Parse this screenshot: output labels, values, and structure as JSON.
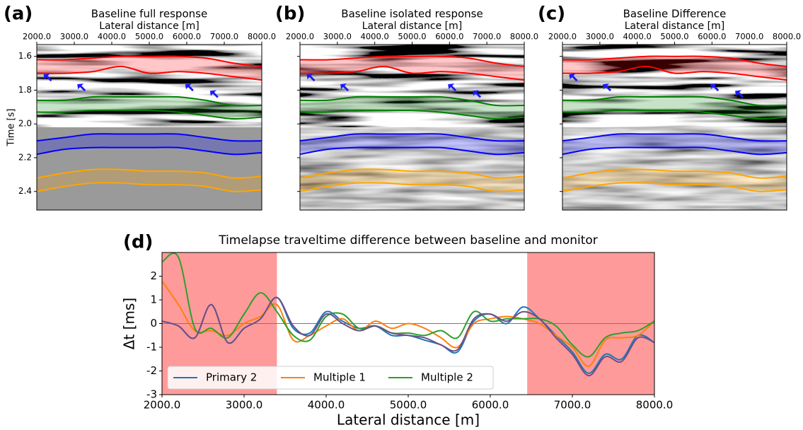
{
  "chart_data": [
    {
      "type": "seismic",
      "label": "(a)",
      "title": "Baseline full response",
      "xlabel": "Lateral distance [m]",
      "ylabel": "Time [s]",
      "xlim": [
        2000,
        8000
      ],
      "xticks": [
        {
          "value": 2000,
          "label": "2000.0"
        },
        {
          "value": 3000,
          "label": "3000.0"
        },
        {
          "value": 4000,
          "label": "4000.0"
        },
        {
          "value": 5000,
          "label": "5000.0"
        },
        {
          "value": 6000,
          "label": "6000.0"
        },
        {
          "value": 7000,
          "label": "7000.0"
        },
        {
          "value": 8000,
          "label": "8000.0"
        }
      ],
      "ylim": [
        1.53,
        2.51
      ],
      "y_inverted": true,
      "ytick_labels": true,
      "yticks": [
        1.6,
        1.8,
        {
          "value": 2.0,
          "label": "2.0"
        },
        2.2,
        2.4
      ],
      "x": [
        2000,
        2750,
        3500,
        4250,
        5000,
        5750,
        6500,
        7250,
        8000
      ],
      "horizons": [
        {
          "color": "#ff0000",
          "values": [
            1.62,
            1.62,
            1.61,
            1.6,
            1.6,
            1.6,
            1.61,
            1.64,
            1.66
          ]
        },
        {
          "color": "#ff0000",
          "values": [
            1.7,
            1.7,
            1.69,
            1.66,
            1.7,
            1.69,
            1.7,
            1.72,
            1.74
          ]
        },
        {
          "color": "#008000",
          "values": [
            1.86,
            1.86,
            1.84,
            1.84,
            1.84,
            1.84,
            1.86,
            1.89,
            1.89
          ]
        },
        {
          "color": "#008000",
          "values": [
            1.93,
            1.93,
            1.92,
            1.92,
            1.92,
            1.93,
            1.95,
            1.97,
            1.96
          ]
        },
        {
          "color": "#0000ff",
          "values": [
            2.1,
            2.08,
            2.06,
            2.06,
            2.06,
            2.06,
            2.08,
            2.1,
            2.1
          ]
        },
        {
          "color": "#0000ff",
          "values": [
            2.18,
            2.15,
            2.14,
            2.14,
            2.14,
            2.14,
            2.16,
            2.18,
            2.17
          ]
        },
        {
          "color": "#ffa500",
          "values": [
            2.32,
            2.29,
            2.27,
            2.27,
            2.28,
            2.28,
            2.29,
            2.32,
            2.31
          ]
        },
        {
          "color": "#ffa500",
          "values": [
            2.4,
            2.37,
            2.35,
            2.35,
            2.36,
            2.36,
            2.37,
            2.4,
            2.39
          ]
        }
      ]
    },
    {
      "type": "seismic",
      "label": "(b)",
      "title": "Baseline isolated response",
      "xlabel": "Lateral distance [m]",
      "xlim": [
        2000,
        8000
      ],
      "xticks": [
        {
          "value": 2000,
          "label": "2000.0"
        },
        {
          "value": 3000,
          "label": "3000.0"
        },
        {
          "value": 4000,
          "label": "4000.0"
        },
        {
          "value": 5000,
          "label": "5000.0"
        },
        {
          "value": 6000,
          "label": "6000.0"
        },
        {
          "value": 7000,
          "label": "7000.0"
        },
        {
          "value": 8000,
          "label": "8000.0"
        }
      ],
      "ylim": [
        1.53,
        2.51
      ],
      "y_inverted": true,
      "ytick_labels": false,
      "yticks": [
        1.6,
        1.8,
        2,
        2.2,
        2.4
      ],
      "x": [
        2000,
        2750,
        3500,
        4250,
        5000,
        5750,
        6500,
        7250,
        8000
      ],
      "horizons": [
        {
          "color": "#ff0000",
          "values": [
            1.62,
            1.62,
            1.61,
            1.6,
            1.6,
            1.6,
            1.61,
            1.64,
            1.66
          ]
        },
        {
          "color": "#ff0000",
          "values": [
            1.7,
            1.7,
            1.69,
            1.66,
            1.7,
            1.69,
            1.7,
            1.72,
            1.74
          ]
        },
        {
          "color": "#008000",
          "values": [
            1.86,
            1.86,
            1.84,
            1.84,
            1.84,
            1.84,
            1.86,
            1.89,
            1.89
          ]
        },
        {
          "color": "#008000",
          "values": [
            1.93,
            1.93,
            1.92,
            1.92,
            1.92,
            1.93,
            1.95,
            1.97,
            1.96
          ]
        },
        {
          "color": "#0000ff",
          "values": [
            2.1,
            2.08,
            2.06,
            2.06,
            2.06,
            2.06,
            2.08,
            2.1,
            2.1
          ]
        },
        {
          "color": "#0000ff",
          "values": [
            2.18,
            2.15,
            2.14,
            2.14,
            2.14,
            2.14,
            2.16,
            2.18,
            2.17
          ]
        },
        {
          "color": "#ffa500",
          "values": [
            2.32,
            2.29,
            2.27,
            2.27,
            2.28,
            2.28,
            2.29,
            2.32,
            2.31
          ]
        },
        {
          "color": "#ffa500",
          "values": [
            2.4,
            2.37,
            2.35,
            2.35,
            2.36,
            2.36,
            2.37,
            2.4,
            2.39
          ]
        }
      ]
    },
    {
      "type": "seismic",
      "label": "(c)",
      "title": "Baseline Difference",
      "xlabel": "Lateral distance [m]",
      "xlim": [
        2000,
        8000
      ],
      "xticks": [
        {
          "value": 2000,
          "label": "2000.0"
        },
        {
          "value": 3000,
          "label": "3000.0"
        },
        {
          "value": 4000,
          "label": "4000.0"
        },
        {
          "value": 5000,
          "label": "5000.0"
        },
        {
          "value": 6000,
          "label": "6000.0"
        },
        {
          "value": 7000,
          "label": "7000.0"
        },
        {
          "value": 8000,
          "label": "8000.0"
        }
      ],
      "ylim": [
        1.53,
        2.51
      ],
      "y_inverted": true,
      "ytick_labels": false,
      "yticks": [
        1.6,
        1.8,
        2,
        2.2,
        2.4
      ],
      "x": [
        2000,
        2750,
        3500,
        4250,
        5000,
        5750,
        6500,
        7250,
        8000
      ],
      "horizons": [
        {
          "color": "#ff0000",
          "values": [
            1.62,
            1.62,
            1.61,
            1.6,
            1.6,
            1.6,
            1.61,
            1.64,
            1.66
          ]
        },
        {
          "color": "#ff0000",
          "values": [
            1.7,
            1.7,
            1.69,
            1.66,
            1.7,
            1.69,
            1.7,
            1.72,
            1.74
          ]
        },
        {
          "color": "#008000",
          "values": [
            1.86,
            1.86,
            1.84,
            1.84,
            1.84,
            1.84,
            1.86,
            1.89,
            1.89
          ]
        },
        {
          "color": "#008000",
          "values": [
            1.93,
            1.93,
            1.92,
            1.92,
            1.92,
            1.93,
            1.95,
            1.97,
            1.96
          ]
        },
        {
          "color": "#0000ff",
          "values": [
            2.1,
            2.08,
            2.06,
            2.06,
            2.06,
            2.06,
            2.08,
            2.1,
            2.1
          ]
        },
        {
          "color": "#0000ff",
          "values": [
            2.18,
            2.15,
            2.14,
            2.14,
            2.14,
            2.14,
            2.16,
            2.18,
            2.17
          ]
        },
        {
          "color": "#ffa500",
          "values": [
            2.32,
            2.29,
            2.27,
            2.27,
            2.28,
            2.28,
            2.29,
            2.32,
            2.31
          ]
        },
        {
          "color": "#ffa500",
          "values": [
            2.4,
            2.37,
            2.35,
            2.35,
            2.36,
            2.36,
            2.37,
            2.4,
            2.39
          ]
        }
      ]
    },
    {
      "type": "line",
      "label": "(d)",
      "title": "Timelapse traveltime difference between baseline and monitor",
      "xlabel": "Lateral distance [m]",
      "ylabel": "Δt [ms]",
      "xlim": [
        2000,
        8000
      ],
      "xticks": [
        {
          "value": 2000,
          "label": "2000.0"
        },
        {
          "value": 3000,
          "label": "3000.0"
        },
        {
          "value": 4000,
          "label": "4000.0"
        },
        {
          "value": 5000,
          "label": "5000.0"
        },
        {
          "value": 6000,
          "label": "6000.0"
        },
        {
          "value": 7000,
          "label": "7000.0"
        },
        {
          "value": 8000,
          "label": "8000.0"
        }
      ],
      "ylim": [
        -3,
        3
      ],
      "yticks": [
        -3,
        -2,
        -1,
        0,
        1,
        2
      ],
      "hline": 0,
      "shaded": [
        [
          2000,
          3400
        ],
        [
          6450,
          8000
        ]
      ],
      "shade_color": "#ff9a9a",
      "legend": "lower left",
      "x": [
        2000,
        2200,
        2400,
        2600,
        2800,
        3000,
        3200,
        3400,
        3600,
        3800,
        4000,
        4200,
        4400,
        4600,
        4800,
        5000,
        5200,
        5400,
        5600,
        5800,
        6000,
        6200,
        6400,
        6600,
        6800,
        7000,
        7200,
        7400,
        7600,
        7800,
        8000
      ],
      "series": [
        {
          "name": "Primary 2",
          "color": "#1f77b4",
          "values": [
            0.1,
            -0.1,
            -0.6,
            0.8,
            -0.8,
            -0.2,
            0.2,
            1.1,
            -0.2,
            -0.4,
            0.5,
            0.1,
            -0.2,
            -0.1,
            -0.5,
            -0.5,
            -0.7,
            -0.9,
            -1.2,
            0.1,
            0.4,
            0.0,
            0.7,
            0.2,
            -0.5,
            -1.2,
            -2.1,
            -1.3,
            -1.5,
            -0.5,
            -0.8
          ]
        },
        {
          "name": "Multiple 1",
          "color": "#ff7f0e",
          "values": [
            1.8,
            0.8,
            -0.3,
            -0.3,
            -0.5,
            0.0,
            0.3,
            0.8,
            -0.7,
            -0.5,
            -0.1,
            0.2,
            -0.3,
            0.1,
            -0.2,
            0.0,
            -0.2,
            -0.6,
            -1.0,
            0.0,
            0.2,
            0.3,
            0.2,
            0.0,
            -0.5,
            -1.0,
            -1.8,
            -0.7,
            -0.6,
            -0.5,
            0.1
          ]
        },
        {
          "name": "Multiple 2",
          "color": "#2ca02c",
          "values": [
            2.6,
            2.8,
            -0.2,
            -0.2,
            -0.6,
            0.4,
            1.3,
            0.5,
            -0.5,
            -0.7,
            0.3,
            0.4,
            -0.2,
            -0.1,
            -0.4,
            -0.4,
            -0.5,
            -0.3,
            -0.6,
            0.5,
            0.1,
            0.2,
            0.2,
            0.2,
            -0.1,
            -0.9,
            -1.4,
            -0.6,
            -0.4,
            -0.3,
            0.1
          ]
        },
        {
          "color": "#6d4f87",
          "values": [
            0.1,
            -0.1,
            -0.6,
            0.8,
            -0.8,
            -0.2,
            0.2,
            1.1,
            -0.1,
            -0.5,
            0.4,
            0.0,
            -0.3,
            -0.1,
            -0.4,
            -0.5,
            -0.6,
            -0.9,
            -1.1,
            0.2,
            0.4,
            0.1,
            0.5,
            0.2,
            -0.6,
            -1.3,
            -2.2,
            -1.4,
            -1.6,
            -0.6,
            -0.8
          ]
        }
      ]
    }
  ]
}
